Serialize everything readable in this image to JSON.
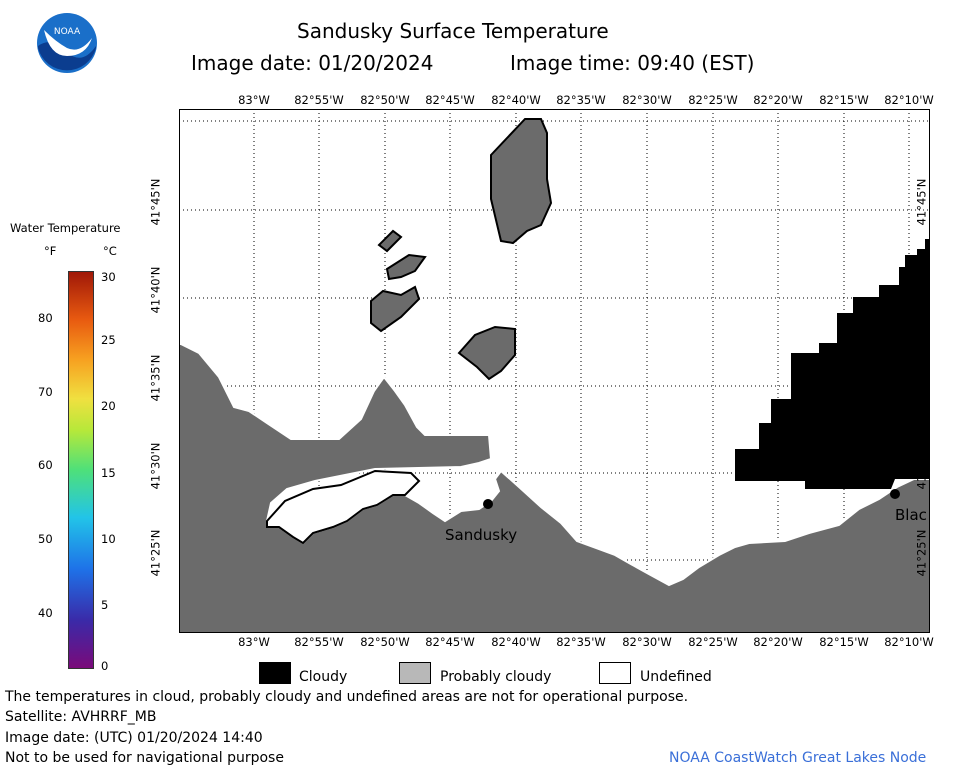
{
  "header": {
    "title": "Sandusky Surface Temperature",
    "image_date": "Image date: 01/20/2024",
    "image_time": "Image time: 09:40 (EST)",
    "logo_text": "NOAA"
  },
  "colorbar": {
    "title": "Water Temperature",
    "unit_f": "°F",
    "unit_c": "°C",
    "f_ticks": [
      "80",
      "70",
      "60",
      "50",
      "40"
    ],
    "c_ticks": [
      "30",
      "25",
      "20",
      "15",
      "10",
      "5",
      "0"
    ]
  },
  "map": {
    "lon_labels": [
      "83°W",
      "82°55'W",
      "82°50'W",
      "82°45'W",
      "82°40'W",
      "82°35'W",
      "82°30'W",
      "82°25'W",
      "82°20'W",
      "82°15'W",
      "82°10'W"
    ],
    "lat_labels": [
      "41°45'N",
      "41°40'N",
      "41°35'N",
      "41°30'N",
      "41°25'N"
    ],
    "places": {
      "sandusky": "Sandusky",
      "bay": "Blac"
    },
    "colors": {
      "land": "#6b6b6b",
      "cloudy": "#000000",
      "undefined": "#ffffff"
    }
  },
  "legend": {
    "cloudy": "Cloudy",
    "probably_cloudy": "Probably cloudy",
    "undefined": "Undefined"
  },
  "footer": {
    "disclaimer": "The temperatures in cloud, probably cloudy and undefined areas are not for operational purpose.",
    "satellite": "Satellite: AVHRRF_MB",
    "utc_date": "Image date: (UTC) 01/20/2024  14:40",
    "nav_note": "Not to be used for navigational purpose",
    "credit": "NOAA CoastWatch Great Lakes Node"
  }
}
